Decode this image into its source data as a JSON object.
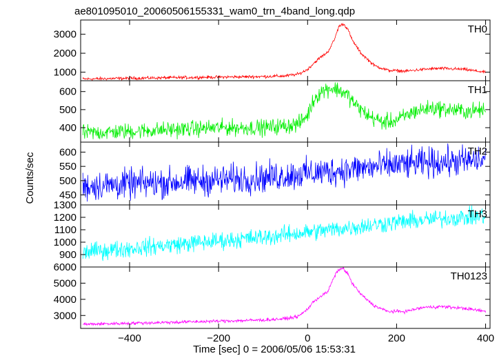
{
  "chart_data": {
    "type": "line",
    "title": "ae801095010_20060506155331_wam0_trn_4band_long.qdp",
    "xlabel": "Time [sec] 0 = 2006/05/06 15:53:31",
    "ylabel": "Counts/sec",
    "xlim": [
      -510,
      410
    ],
    "x_ticks": [
      -400,
      -200,
      0,
      200,
      400
    ],
    "x_tick_labels": [
      "−400",
      "−200",
      "0",
      "200",
      "400"
    ],
    "grid": false,
    "legend": "none",
    "series": [
      {
        "name": "TH0",
        "color": "#ff0000",
        "ylim": [
          550,
          3750
        ],
        "yticks": [
          1000,
          2000,
          3000
        ],
        "noise": 40,
        "points": [
          [
            -505,
            640
          ],
          [
            -400,
            680
          ],
          [
            -300,
            710
          ],
          [
            -200,
            740
          ],
          [
            -100,
            770
          ],
          [
            -50,
            800
          ],
          [
            -20,
            900
          ],
          [
            0,
            1150
          ],
          [
            15,
            1500
          ],
          [
            30,
            1800
          ],
          [
            45,
            2050
          ],
          [
            60,
            2700
          ],
          [
            70,
            3400
          ],
          [
            80,
            3550
          ],
          [
            90,
            3300
          ],
          [
            100,
            2700
          ],
          [
            120,
            2000
          ],
          [
            150,
            1350
          ],
          [
            180,
            1100
          ],
          [
            220,
            1050
          ],
          [
            260,
            1150
          ],
          [
            300,
            1200
          ],
          [
            350,
            1150
          ],
          [
            400,
            1000
          ]
        ]
      },
      {
        "name": "TH1",
        "color": "#00ee00",
        "ylim": [
          320,
          660
        ],
        "yticks": [
          400,
          500,
          600
        ],
        "noise": 22,
        "points": [
          [
            -505,
            370
          ],
          [
            -400,
            380
          ],
          [
            -300,
            390
          ],
          [
            -200,
            400
          ],
          [
            -100,
            400
          ],
          [
            -50,
            410
          ],
          [
            -20,
            420
          ],
          [
            0,
            470
          ],
          [
            15,
            560
          ],
          [
            30,
            600
          ],
          [
            50,
            620
          ],
          [
            70,
            610
          ],
          [
            90,
            580
          ],
          [
            110,
            520
          ],
          [
            140,
            460
          ],
          [
            170,
            430
          ],
          [
            200,
            440
          ],
          [
            240,
            490
          ],
          [
            280,
            510
          ],
          [
            320,
            500
          ],
          [
            360,
            490
          ],
          [
            400,
            500
          ]
        ]
      },
      {
        "name": "TH2",
        "color": "#0000ff",
        "ylim": [
          415,
          635
        ],
        "yticks": [
          450,
          500,
          550,
          600
        ],
        "noise": 26,
        "points": [
          [
            -505,
            480
          ],
          [
            -300,
            495
          ],
          [
            -100,
            510
          ],
          [
            0,
            525
          ],
          [
            100,
            540
          ],
          [
            200,
            555
          ],
          [
            300,
            565
          ],
          [
            400,
            570
          ]
        ]
      },
      {
        "name": "TH3",
        "color": "#00ffff",
        "ylim": [
          800,
          1300
        ],
        "yticks": [
          900,
          1000,
          1100,
          1200,
          1300
        ],
        "noise": 35,
        "points": [
          [
            -505,
            920
          ],
          [
            -400,
            950
          ],
          [
            -300,
            980
          ],
          [
            -200,
            1010
          ],
          [
            -100,
            1040
          ],
          [
            0,
            1080
          ],
          [
            100,
            1120
          ],
          [
            200,
            1160
          ],
          [
            300,
            1190
          ],
          [
            400,
            1210
          ]
        ]
      },
      {
        "name": "TH0123",
        "color": "#ff00ff",
        "ylim": [
          2200,
          6000
        ],
        "yticks": [
          3000,
          4000,
          5000,
          6000
        ],
        "noise": 50,
        "points": [
          [
            -505,
            2450
          ],
          [
            -400,
            2520
          ],
          [
            -300,
            2580
          ],
          [
            -200,
            2650
          ],
          [
            -100,
            2720
          ],
          [
            -50,
            2800
          ],
          [
            -20,
            2950
          ],
          [
            0,
            3400
          ],
          [
            15,
            3900
          ],
          [
            30,
            4200
          ],
          [
            45,
            4450
          ],
          [
            60,
            5400
          ],
          [
            70,
            5850
          ],
          [
            80,
            5900
          ],
          [
            90,
            5600
          ],
          [
            100,
            5000
          ],
          [
            120,
            4300
          ],
          [
            150,
            3600
          ],
          [
            180,
            3250
          ],
          [
            220,
            3250
          ],
          [
            260,
            3500
          ],
          [
            300,
            3550
          ],
          [
            350,
            3450
          ],
          [
            400,
            3250
          ]
        ]
      }
    ]
  }
}
